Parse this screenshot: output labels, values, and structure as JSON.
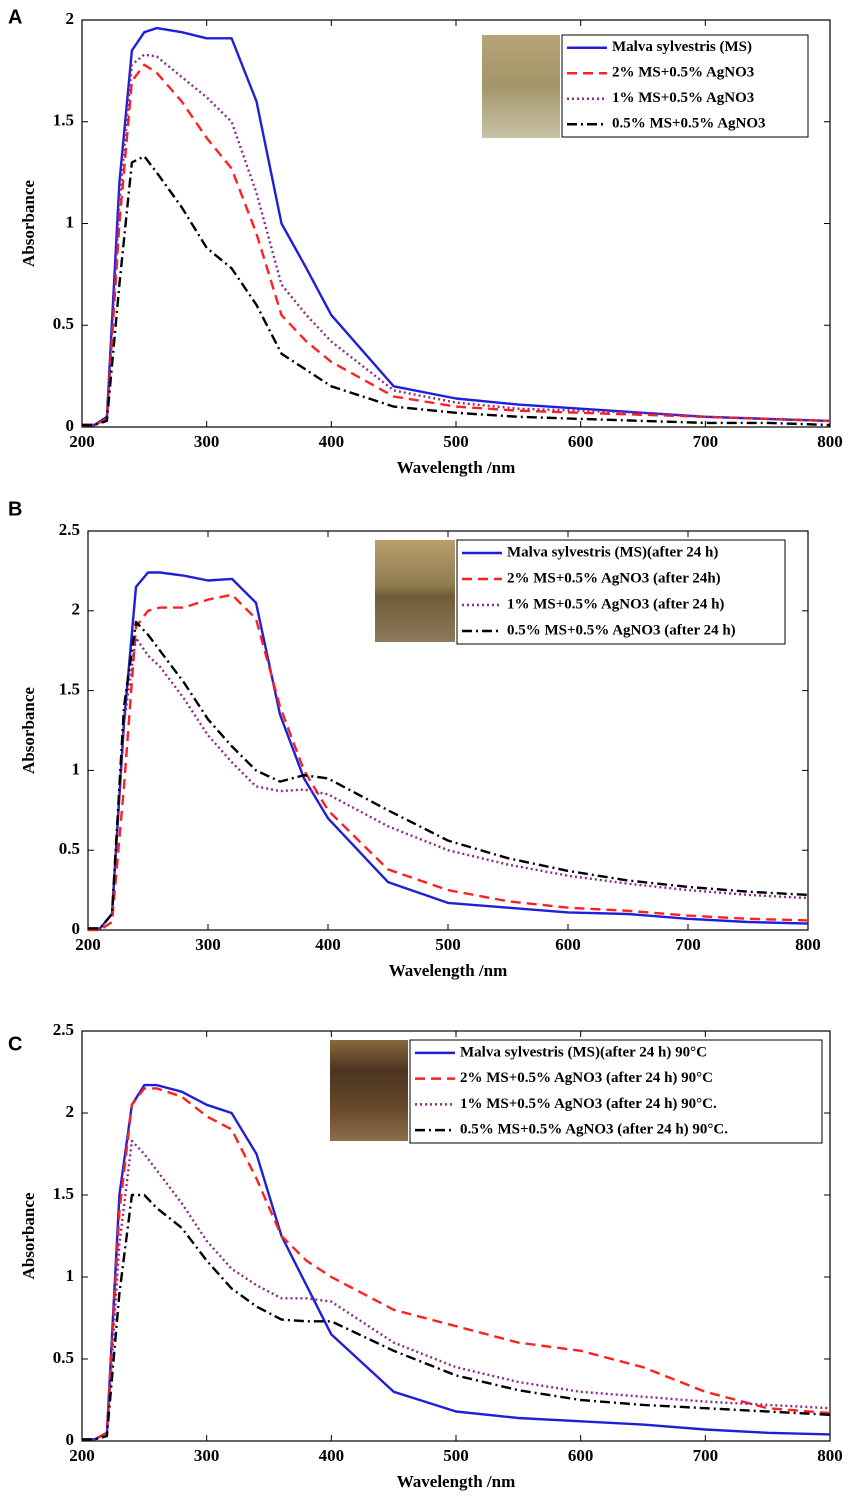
{
  "chart_data": [
    {
      "type": "line",
      "label": "A",
      "xlabel": "Wavelength /nm",
      "ylabel": "Absorbance",
      "x": [
        200,
        210,
        220,
        230,
        240,
        250,
        260,
        280,
        300,
        320,
        340,
        360,
        380,
        400,
        450,
        500,
        550,
        600,
        650,
        700,
        750,
        800
      ],
      "xlim": [
        200,
        800
      ],
      "ylim": [
        0,
        2
      ],
      "xticks": [
        200,
        300,
        400,
        500,
        600,
        700,
        800
      ],
      "yticks": [
        0,
        0.5,
        1,
        1.5,
        2
      ],
      "series": [
        {
          "name": "Malva sylvestris (MS)",
          "color": "#1f1fd8",
          "style": "solid",
          "values": [
            0.01,
            0.01,
            0.05,
            1.2,
            1.85,
            1.94,
            1.96,
            1.94,
            1.91,
            1.91,
            1.6,
            1.0,
            0.78,
            0.55,
            0.2,
            0.14,
            0.11,
            0.09,
            0.07,
            0.05,
            0.04,
            0.03
          ]
        },
        {
          "name": "2% MS+0.5% AgNO3",
          "color": "#ff2020",
          "style": "dashed",
          "values": [
            0.01,
            0.01,
            0.04,
            1.0,
            1.7,
            1.78,
            1.74,
            1.6,
            1.42,
            1.27,
            0.95,
            0.55,
            0.42,
            0.32,
            0.15,
            0.1,
            0.08,
            0.07,
            0.06,
            0.05,
            0.04,
            0.03
          ]
        },
        {
          "name": "1% MS+0.5% AgNO3",
          "color": "#8b2a8b",
          "style": "dotted",
          "values": [
            0.01,
            0.01,
            0.04,
            1.1,
            1.78,
            1.83,
            1.82,
            1.72,
            1.62,
            1.5,
            1.15,
            0.7,
            0.55,
            0.42,
            0.18,
            0.12,
            0.09,
            0.08,
            0.07,
            0.05,
            0.04,
            0.03
          ]
        },
        {
          "name": "0.5% MS+0.5% AgNO3",
          "color": "#000000",
          "style": "dashdot",
          "values": [
            0.01,
            0.01,
            0.03,
            0.7,
            1.3,
            1.33,
            1.25,
            1.08,
            0.88,
            0.78,
            0.6,
            0.36,
            0.28,
            0.2,
            0.1,
            0.07,
            0.05,
            0.04,
            0.03,
            0.02,
            0.02,
            0.01
          ]
        }
      ]
    },
    {
      "type": "line",
      "label": "B",
      "xlabel": "Wavelength /nm",
      "ylabel": "Absorbance",
      "x": [
        200,
        210,
        220,
        230,
        240,
        250,
        260,
        280,
        300,
        320,
        340,
        360,
        380,
        400,
        450,
        500,
        550,
        600,
        650,
        700,
        750,
        800
      ],
      "xlim": [
        200,
        800
      ],
      "ylim": [
        0,
        2.5
      ],
      "xticks": [
        200,
        300,
        400,
        500,
        600,
        700,
        800
      ],
      "yticks": [
        0,
        0.5,
        1,
        1.5,
        2,
        2.5
      ],
      "series": [
        {
          "name": "Malva sylvestris (MS)(after 24 h)",
          "color": "#1f1fd8",
          "style": "solid",
          "values": [
            0.01,
            0.01,
            0.1,
            1.3,
            2.15,
            2.24,
            2.24,
            2.22,
            2.19,
            2.2,
            2.05,
            1.35,
            0.95,
            0.7,
            0.3,
            0.17,
            0.14,
            0.11,
            0.1,
            0.07,
            0.05,
            0.04
          ]
        },
        {
          "name": "2% MS+0.5% AgNO3 (after 24h)",
          "color": "#ff2020",
          "style": "dashed",
          "values": [
            0,
            0,
            0.05,
            0.9,
            1.9,
            2.0,
            2.02,
            2.02,
            2.07,
            2.1,
            1.95,
            1.4,
            1.0,
            0.75,
            0.38,
            0.25,
            0.18,
            0.14,
            0.12,
            0.09,
            0.07,
            0.06
          ]
        },
        {
          "name": "1% MS+0.5% AgNO3 (after 24 h)",
          "color": "#8b2a8b",
          "style": "dotted",
          "values": [
            0.01,
            0.01,
            0.1,
            1.3,
            1.83,
            1.72,
            1.65,
            1.45,
            1.22,
            1.05,
            0.9,
            0.87,
            0.88,
            0.85,
            0.65,
            0.5,
            0.41,
            0.34,
            0.29,
            0.25,
            0.22,
            0.2
          ]
        },
        {
          "name": "0.5% MS+0.5% AgNO3 (after 24 h)",
          "color": "#000000",
          "style": "dashdot",
          "values": [
            0.01,
            0.01,
            0.1,
            1.4,
            1.93,
            1.85,
            1.75,
            1.55,
            1.32,
            1.15,
            1.0,
            0.93,
            0.97,
            0.95,
            0.75,
            0.56,
            0.45,
            0.37,
            0.31,
            0.27,
            0.24,
            0.22
          ]
        }
      ]
    },
    {
      "type": "line",
      "label": "C",
      "xlabel": "Wavelength /nm",
      "ylabel": "Absorbance",
      "x": [
        200,
        210,
        220,
        230,
        240,
        250,
        260,
        280,
        300,
        320,
        340,
        360,
        380,
        400,
        450,
        500,
        550,
        600,
        650,
        700,
        750,
        800
      ],
      "xlim": [
        200,
        800
      ],
      "ylim": [
        0,
        2.5
      ],
      "xticks": [
        200,
        300,
        400,
        500,
        600,
        700,
        800
      ],
      "yticks": [
        0,
        0.5,
        1,
        1.5,
        2,
        2.5
      ],
      "series": [
        {
          "name": "Malva sylvestris (MS)(after 24 h) 90°C",
          "color": "#1f1fd8",
          "style": "solid",
          "values": [
            0.01,
            0.01,
            0.05,
            1.5,
            2.05,
            2.17,
            2.17,
            2.13,
            2.05,
            2.0,
            1.75,
            1.25,
            0.95,
            0.65,
            0.3,
            0.18,
            0.14,
            0.12,
            0.1,
            0.07,
            0.05,
            0.04
          ]
        },
        {
          "name": "2% MS+0.5% AgNO3 (after 24 h) 90°C",
          "color": "#ff2020",
          "style": "dashed",
          "values": [
            0.01,
            0.01,
            0.05,
            1.4,
            2.05,
            2.15,
            2.15,
            2.1,
            1.98,
            1.9,
            1.6,
            1.25,
            1.1,
            1.0,
            0.8,
            0.7,
            0.6,
            0.55,
            0.45,
            0.3,
            0.2,
            0.17
          ]
        },
        {
          "name": "1% MS+0.5% AgNO3 (after 24 h) 90°C.",
          "color": "#8b2a8b",
          "style": "dotted",
          "values": [
            0.01,
            0.01,
            0.04,
            1.2,
            1.83,
            1.75,
            1.65,
            1.45,
            1.22,
            1.05,
            0.95,
            0.87,
            0.87,
            0.85,
            0.6,
            0.45,
            0.36,
            0.3,
            0.27,
            0.24,
            0.22,
            0.2
          ]
        },
        {
          "name": "0.5% MS+0.5% AgNO3 (after 24 h) 90°C.",
          "color": "#000000",
          "style": "dashdot",
          "values": [
            0.01,
            0.01,
            0.03,
            0.9,
            1.5,
            1.5,
            1.42,
            1.3,
            1.1,
            0.93,
            0.82,
            0.74,
            0.73,
            0.73,
            0.55,
            0.4,
            0.31,
            0.25,
            0.22,
            0.2,
            0.18,
            0.16
          ]
        }
      ]
    }
  ]
}
